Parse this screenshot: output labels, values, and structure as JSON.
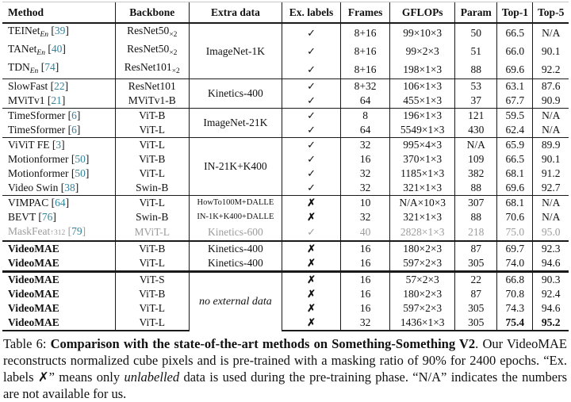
{
  "colors": {
    "citation": "#35839a",
    "muted": "#9c9c9c",
    "rule": "#1a1a1a"
  },
  "icons": {
    "check": "✓",
    "cross": "✗"
  },
  "table": {
    "columns": [
      "Method",
      "Backbone",
      "Extra data",
      "Ex. labels",
      "Frames",
      "GFLOPs",
      "Param",
      "Top-1",
      "Top-5"
    ],
    "rows": [
      {
        "method": {
          "name": "TEINet",
          "sub": "En",
          "ref": "39"
        },
        "backbone": {
          "name": "ResNet50",
          "sub": "×2"
        },
        "extra": {
          "text": "ImageNet-1K",
          "rowspan": 3
        },
        "ex_label": "check",
        "frames": "8+16",
        "gflops": "99×10×3",
        "param": "50",
        "top1": "66.5",
        "top5": "N/A"
      },
      {
        "method": {
          "name": "TANet",
          "sub": "En",
          "ref": "40"
        },
        "backbone": {
          "name": "ResNet50",
          "sub": "×2"
        },
        "ex_label": "check",
        "frames": "8+16",
        "gflops": "99×2×3",
        "param": "51",
        "top1": "66.0",
        "top5": "90.1"
      },
      {
        "method": {
          "name": "TDN",
          "sub": "En",
          "ref": "74"
        },
        "backbone": {
          "name": "ResNet101",
          "sub": "×2"
        },
        "ex_label": "check",
        "frames": "8+16",
        "gflops": "198×1×3",
        "param": "88",
        "top1": "69.6",
        "top5": "92.2"
      },
      {
        "rule": "thin",
        "method": {
          "name": "SlowFast",
          "ref": "22"
        },
        "backbone": {
          "name": "ResNet101"
        },
        "extra": {
          "text": "Kinetics-400",
          "rowspan": 2
        },
        "ex_label": "check",
        "frames": "8+32",
        "gflops": "106×1×3",
        "param": "53",
        "top1": "63.1",
        "top5": "87.6"
      },
      {
        "method": {
          "name": "MViTv1",
          "ref": "21"
        },
        "backbone": {
          "name": "MViTv1-B"
        },
        "ex_label": "check",
        "frames": "64",
        "gflops": "455×1×3",
        "param": "37",
        "top1": "67.7",
        "top5": "90.9"
      },
      {
        "rule": "thin",
        "method": {
          "name": "TimeSformer",
          "ref": "6"
        },
        "backbone": {
          "name": "ViT-B"
        },
        "extra": {
          "text": "ImageNet-21K",
          "rowspan": 2
        },
        "ex_label": "check",
        "frames": "8",
        "gflops": "196×1×3",
        "param": "121",
        "top1": "59.5",
        "top5": "N/A"
      },
      {
        "method": {
          "name": "TimeSformer",
          "ref": "6"
        },
        "backbone": {
          "name": "ViT-L"
        },
        "ex_label": "check",
        "frames": "64",
        "gflops": "5549×1×3",
        "param": "430",
        "top1": "62.4",
        "top5": "N/A"
      },
      {
        "rule": "thin",
        "method": {
          "name": "ViViT FE",
          "ref": "3"
        },
        "backbone": {
          "name": "ViT-L"
        },
        "extra": {
          "text": "IN-21K+K400",
          "rowspan": 4
        },
        "ex_label": "check",
        "frames": "32",
        "gflops": "995×4×3",
        "param": "N/A",
        "top1": "65.9",
        "top5": "89.9"
      },
      {
        "method": {
          "name": "Motionformer",
          "ref": "50"
        },
        "backbone": {
          "name": "ViT-B"
        },
        "ex_label": "check",
        "frames": "16",
        "gflops": "370×1×3",
        "param": "109",
        "top1": "66.5",
        "top5": "90.1"
      },
      {
        "method": {
          "name": "Motionformer",
          "ref": "50"
        },
        "backbone": {
          "name": "ViT-L"
        },
        "ex_label": "check",
        "frames": "32",
        "gflops": "1185×1×3",
        "param": "382",
        "top1": "68.1",
        "top5": "91.2"
      },
      {
        "method": {
          "name": "Video Swin",
          "ref": "38"
        },
        "backbone": {
          "name": "Swin-B"
        },
        "ex_label": "check",
        "frames": "32",
        "gflops": "321×1×3",
        "param": "88",
        "top1": "69.6",
        "top5": "92.7"
      },
      {
        "rule": "thin",
        "method": {
          "name": "VIMPAC",
          "ref": "64"
        },
        "backbone": {
          "name": "ViT-L"
        },
        "extra": {
          "text": "HowTo100M+DALLE",
          "rowspan": 1,
          "small": true
        },
        "ex_label": "cross",
        "frames": "10",
        "gflops": "N/A×10×3",
        "param": "307",
        "top1": "68.1",
        "top5": "N/A"
      },
      {
        "method": {
          "name": "BEVT",
          "ref": "76"
        },
        "backbone": {
          "name": "Swin-B"
        },
        "extra": {
          "text": "IN-1K+K400+DALLE",
          "rowspan": 1,
          "small": true
        },
        "ex_label": "cross",
        "frames": "32",
        "gflops": "321×1×3",
        "param": "88",
        "top1": "70.6",
        "top5": "N/A"
      },
      {
        "muted": true,
        "method": {
          "name": "MaskFeat",
          "small": "↑312",
          "ref": "79"
        },
        "backbone": {
          "name": "MViT-L"
        },
        "extra": {
          "text": "Kinetics-600",
          "rowspan": 1
        },
        "ex_label": "check",
        "frames": "40",
        "gflops": "2828×1×3",
        "param": "218",
        "top1": "75.0",
        "top5": "95.0"
      },
      {
        "rule": "thick",
        "method": {
          "name": "VideoMAE",
          "bold": true
        },
        "backbone": {
          "name": "ViT-B"
        },
        "extra": {
          "text": "Kinetics-400",
          "rowspan": 1
        },
        "ex_label": "cross",
        "frames": "16",
        "gflops": "180×2×3",
        "param": "87",
        "top1": "69.7",
        "top5": "92.3"
      },
      {
        "method": {
          "name": "VideoMAE",
          "bold": true
        },
        "backbone": {
          "name": "ViT-L"
        },
        "extra": {
          "text": "Kinetics-400",
          "rowspan": 1
        },
        "ex_label": "cross",
        "frames": "16",
        "gflops": "597×2×3",
        "param": "305",
        "top1": "74.0",
        "top5": "94.6"
      },
      {
        "rule": "xthick",
        "method": {
          "name": "VideoMAE",
          "bold": true
        },
        "backbone": {
          "name": "ViT-S"
        },
        "extra": {
          "text": "no external data",
          "rowspan": 4,
          "italic": true
        },
        "ex_label": "cross",
        "frames": "16",
        "gflops": "57×2×3",
        "param": "22",
        "top1": "66.8",
        "top5": "90.3"
      },
      {
        "method": {
          "name": "VideoMAE",
          "bold": true
        },
        "backbone": {
          "name": "ViT-B"
        },
        "ex_label": "cross",
        "frames": "16",
        "gflops": "180×2×3",
        "param": "87",
        "top1": "70.8",
        "top5": "92.4"
      },
      {
        "method": {
          "name": "VideoMAE",
          "bold": true
        },
        "backbone": {
          "name": "ViT-L"
        },
        "ex_label": "cross",
        "frames": "16",
        "gflops": "597×2×3",
        "param": "305",
        "top1": "74.3",
        "top5": "94.6"
      },
      {
        "method": {
          "name": "VideoMAE",
          "bold": true
        },
        "backbone": {
          "name": "ViT-L"
        },
        "ex_label": "cross",
        "frames": "32",
        "gflops": "1436×1×3",
        "param": "305",
        "top1": "75.4",
        "top5": "95.2",
        "top1_bold": true,
        "top5_bold": true
      }
    ]
  },
  "caption": {
    "prefix": "Table 6: ",
    "bold": "Comparison with the state-of-the-art methods on Something-Something V2",
    "mid": ". Our VideoMAE reconstructs normalized cube pixels and is pre-trained with a masking ratio of 90% for 2400 epochs. “Ex. labels ✗” means only ",
    "italic": "unlabelled",
    "suffix": " data is used during the pre-training phase. “N/A” indicates the numbers are not available for us."
  }
}
